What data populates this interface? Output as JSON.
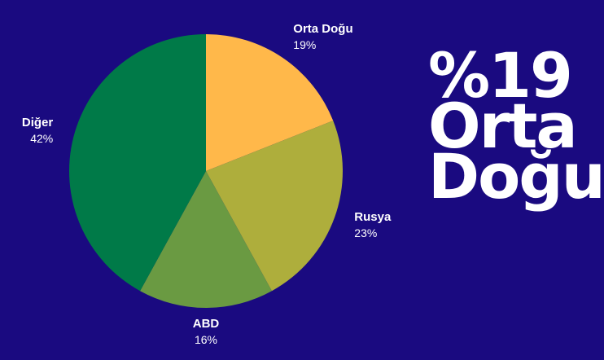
{
  "chart_data": {
    "type": "pie",
    "categories": [
      "Orta Doğu",
      "Rusya",
      "ABD",
      "Diğer"
    ],
    "values": [
      19,
      23,
      16,
      42
    ],
    "value_labels": [
      "19%",
      "23%",
      "16%",
      "42%"
    ],
    "colors": [
      "#ffb84a",
      "#aeae3c",
      "#6a9a42",
      "#007a48"
    ],
    "start_angle_deg": 0,
    "direction": "clockwise"
  },
  "headline": {
    "line1": "%19",
    "line2": "Orta",
    "line3": "Doğu"
  },
  "colors": {
    "background": "#1a0a80",
    "text": "#ffffff",
    "label_text": "#ffffff"
  }
}
